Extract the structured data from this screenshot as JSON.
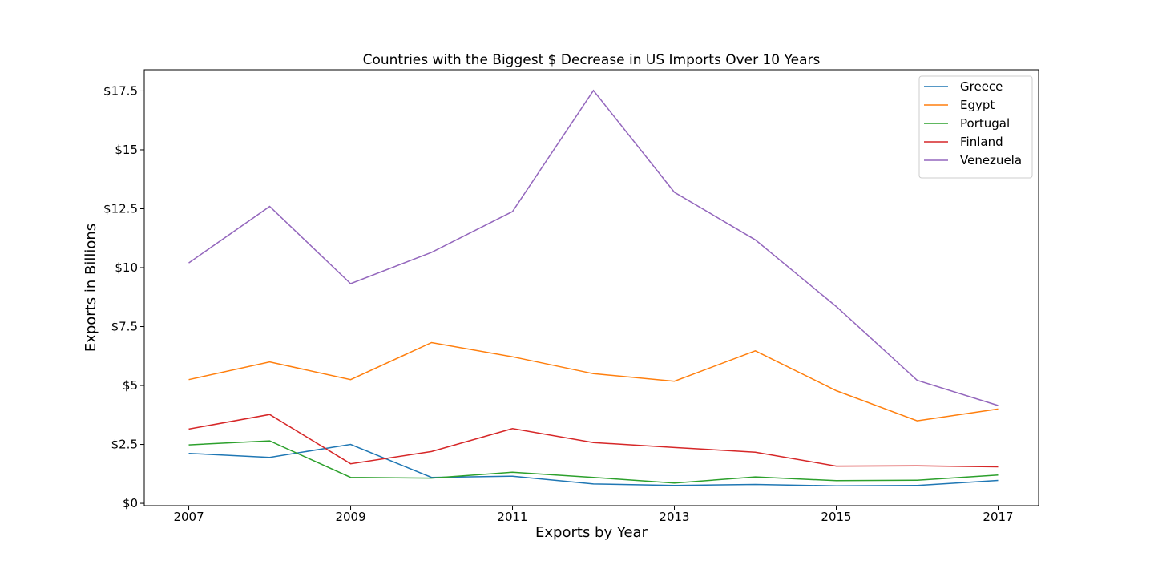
{
  "chart_data": {
    "type": "line",
    "title": "Countries with the Biggest $ Decrease in US Imports Over 10 Years",
    "xlabel": "Exports by Year",
    "ylabel": "Exports in Billions",
    "x": [
      2007,
      2008,
      2009,
      2010,
      2011,
      2012,
      2013,
      2014,
      2015,
      2016,
      2017
    ],
    "xticks": [
      2007,
      2009,
      2011,
      2013,
      2015,
      2017
    ],
    "xtick_labels": [
      "2007",
      "2009",
      "2011",
      "2013",
      "2015",
      "2017"
    ],
    "yticks": [
      0,
      2.5,
      5,
      7.5,
      10,
      12.5,
      15,
      17.5
    ],
    "ytick_labels": [
      "$0",
      "$2.5",
      "$5",
      "$7.5",
      "$10",
      "$12.5",
      "$15",
      "$17.5"
    ],
    "xlim": [
      2006.45,
      2017.5
    ],
    "ylim": [
      -0.1,
      18.4
    ],
    "grid": false,
    "legend_position": "top-right",
    "series": [
      {
        "name": "Greece",
        "color": "#1f77b4",
        "values": [
          2.12,
          1.95,
          2.5,
          1.1,
          1.15,
          0.82,
          0.76,
          0.8,
          0.74,
          0.76,
          0.97
        ]
      },
      {
        "name": "Egypt",
        "color": "#ff7f0e",
        "values": [
          5.25,
          6.0,
          5.25,
          6.82,
          6.22,
          5.5,
          5.18,
          6.47,
          4.78,
          3.5,
          4.0
        ]
      },
      {
        "name": "Portugal",
        "color": "#2ca02c",
        "values": [
          2.48,
          2.65,
          1.1,
          1.07,
          1.32,
          1.1,
          0.86,
          1.12,
          0.96,
          0.98,
          1.2
        ]
      },
      {
        "name": "Finland",
        "color": "#d62728",
        "values": [
          3.15,
          3.77,
          1.68,
          2.2,
          3.17,
          2.58,
          2.37,
          2.17,
          1.58,
          1.59,
          1.55
        ]
      },
      {
        "name": "Venezuela",
        "color": "#9467bd",
        "values": [
          10.2,
          12.6,
          9.32,
          10.65,
          12.38,
          17.52,
          13.2,
          11.18,
          8.35,
          5.22,
          4.15
        ]
      }
    ]
  }
}
